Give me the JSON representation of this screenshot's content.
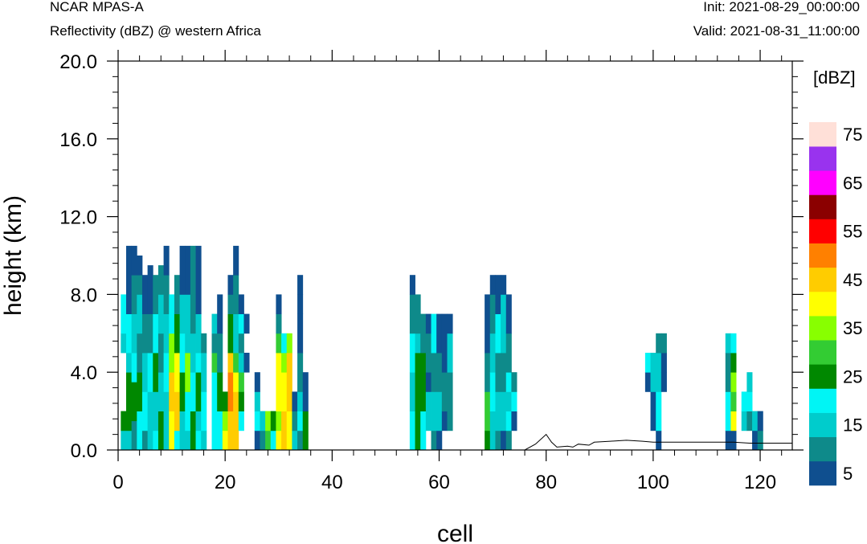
{
  "header": {
    "model": "NCAR MPAS-A",
    "field": "Reflectivity (dBZ) @ western Africa",
    "init": "Init: 2021-08-29_00:00:00",
    "valid": "Valid: 2021-08-31_11:00:00"
  },
  "chart_data": {
    "type": "heatmap",
    "xlabel": "cell",
    "ylabel": "height (km)",
    "xlim": [
      0,
      126
    ],
    "ylim": [
      0,
      20
    ],
    "x_ticks": [
      0,
      20,
      40,
      60,
      80,
      100,
      120
    ],
    "x_tick_labels": [
      "0",
      "20",
      "40",
      "60",
      "80",
      "100",
      "120"
    ],
    "y_ticks": [
      0,
      4,
      8,
      12,
      16,
      20
    ],
    "y_tick_labels": [
      "0.0",
      "4.0",
      "8.0",
      "12.0",
      "16.0",
      "20.0"
    ],
    "colorbar": {
      "unit_label": "[dBZ]",
      "levels": [
        5,
        10,
        15,
        20,
        25,
        30,
        35,
        40,
        45,
        50,
        55,
        60,
        65,
        70,
        75
      ],
      "colors": [
        "#0f4f8f",
        "#0e8a8a",
        "#00cccc",
        "#00f5f5",
        "#008800",
        "#33cc33",
        "#88ff00",
        "#ffff00",
        "#ffcc00",
        "#ff8000",
        "#ff0000",
        "#8b0000",
        "#ff00ff",
        "#9933ee",
        "#ffe0d8"
      ],
      "tick_labels": [
        "5",
        "15",
        "25",
        "35",
        "45",
        "55",
        "65",
        "75"
      ]
    },
    "terrain": [
      [
        0,
        0
      ],
      [
        76,
        0
      ],
      [
        78,
        0.3
      ],
      [
        80,
        0.8
      ],
      [
        81,
        0.4
      ],
      [
        82,
        0.15
      ],
      [
        84,
        0.2
      ],
      [
        85,
        0.15
      ],
      [
        86,
        0.3
      ],
      [
        88,
        0.25
      ],
      [
        89,
        0.4
      ],
      [
        92,
        0.45
      ],
      [
        95,
        0.5
      ],
      [
        98,
        0.45
      ],
      [
        100,
        0.4
      ],
      [
        105,
        0.4
      ],
      [
        110,
        0.4
      ],
      [
        115,
        0.4
      ],
      [
        118,
        0.35
      ],
      [
        120,
        0.35
      ],
      [
        126,
        0.35
      ]
    ],
    "cells": [
      [
        1,
        0,
        1,
        2
      ],
      [
        1,
        1,
        2,
        4
      ],
      [
        1,
        4,
        2,
        6
      ],
      [
        1,
        5,
        6,
        2
      ],
      [
        1,
        6,
        8,
        3
      ],
      [
        2,
        0,
        1,
        2
      ],
      [
        2,
        1,
        4,
        4
      ],
      [
        2,
        4,
        5,
        2
      ],
      [
        2,
        5,
        7,
        3
      ],
      [
        2,
        7,
        10.5,
        0
      ],
      [
        3,
        0,
        1.5,
        1
      ],
      [
        3,
        1.5,
        3.5,
        4
      ],
      [
        3,
        3.5,
        5,
        3
      ],
      [
        3,
        5,
        7,
        2
      ],
      [
        3,
        7,
        9,
        1
      ],
      [
        3,
        9,
        10.5,
        0
      ],
      [
        4,
        0,
        2,
        3
      ],
      [
        4,
        2,
        4,
        4
      ],
      [
        4,
        4,
        6,
        1
      ],
      [
        4,
        6,
        8,
        2
      ],
      [
        4,
        8,
        9,
        1
      ],
      [
        4,
        9,
        10,
        0
      ],
      [
        5,
        0,
        1,
        1
      ],
      [
        5,
        1,
        3,
        3
      ],
      [
        5,
        3,
        5,
        2
      ],
      [
        5,
        5,
        7,
        1
      ],
      [
        5,
        7,
        9,
        0
      ],
      [
        6,
        0,
        3,
        2
      ],
      [
        6,
        3,
        5,
        3
      ],
      [
        6,
        5,
        7,
        1
      ],
      [
        6,
        7,
        9.5,
        0
      ],
      [
        7,
        0,
        1,
        3
      ],
      [
        7,
        1,
        3,
        2
      ],
      [
        7,
        3,
        5,
        4
      ],
      [
        7,
        5,
        7,
        3
      ],
      [
        7,
        7,
        9,
        1
      ],
      [
        8,
        0,
        2,
        4
      ],
      [
        8,
        2,
        4,
        2
      ],
      [
        8,
        4,
        6,
        1
      ],
      [
        8,
        6,
        8,
        2
      ],
      [
        8,
        8,
        9.5,
        1
      ],
      [
        9,
        0,
        3,
        2
      ],
      [
        9,
        3,
        5,
        3
      ],
      [
        9,
        5,
        7,
        2
      ],
      [
        9,
        7,
        9,
        1
      ],
      [
        9,
        9,
        10.5,
        0
      ],
      [
        10,
        0,
        2,
        7
      ],
      [
        10,
        2,
        4,
        8
      ],
      [
        10,
        4,
        6,
        6
      ],
      [
        10,
        6,
        8,
        3
      ],
      [
        11,
        0,
        1,
        3
      ],
      [
        11,
        1,
        3,
        8
      ],
      [
        11,
        3,
        5,
        7
      ],
      [
        11,
        5,
        7,
        4
      ],
      [
        11,
        7,
        9,
        1
      ],
      [
        12,
        0,
        2,
        2
      ],
      [
        12,
        2,
        4,
        4
      ],
      [
        12,
        4,
        6,
        3
      ],
      [
        12,
        6,
        8,
        2
      ],
      [
        12,
        8,
        10.5,
        0
      ],
      [
        13,
        0,
        1,
        2
      ],
      [
        13,
        1,
        3,
        3
      ],
      [
        13,
        3,
        5,
        6
      ],
      [
        13,
        5,
        8,
        2
      ],
      [
        13,
        8,
        10.5,
        0
      ],
      [
        14,
        0,
        2,
        4
      ],
      [
        14,
        2,
        4,
        3
      ],
      [
        14,
        4,
        6,
        2
      ],
      [
        14,
        6,
        8,
        1
      ],
      [
        14,
        8,
        10.5,
        1
      ],
      [
        15,
        0,
        1,
        3
      ],
      [
        15,
        1,
        2,
        2
      ],
      [
        15,
        2,
        4,
        4
      ],
      [
        15,
        4,
        5,
        3
      ],
      [
        15,
        5,
        7,
        2
      ],
      [
        15,
        7,
        10.5,
        0
      ],
      [
        16,
        0,
        1,
        2
      ],
      [
        16,
        1,
        3,
        3
      ],
      [
        16,
        3,
        5,
        2
      ],
      [
        16,
        5,
        6,
        1
      ],
      [
        18,
        0,
        4,
        3
      ],
      [
        18,
        4,
        5,
        5
      ],
      [
        18,
        5,
        6,
        1
      ],
      [
        18,
        6,
        7,
        2
      ],
      [
        19,
        0,
        2,
        3
      ],
      [
        19,
        2,
        4,
        4
      ],
      [
        19,
        4,
        6,
        1
      ],
      [
        19,
        6,
        8,
        0
      ],
      [
        20,
        0,
        1,
        7
      ],
      [
        20,
        1,
        2,
        6
      ],
      [
        20,
        2,
        3,
        4
      ],
      [
        21,
        0,
        2,
        8
      ],
      [
        21,
        2,
        4,
        9
      ],
      [
        21,
        4,
        5,
        8
      ],
      [
        21,
        5,
        7,
        4
      ],
      [
        21,
        7,
        8,
        1
      ],
      [
        21,
        8,
        9,
        0
      ],
      [
        22,
        0,
        3,
        8
      ],
      [
        22,
        3,
        4,
        7
      ],
      [
        22,
        4,
        5,
        5
      ],
      [
        22,
        5,
        7,
        2
      ],
      [
        22,
        7,
        9,
        1
      ],
      [
        22,
        9,
        10.5,
        0
      ],
      [
        23,
        1,
        2,
        3
      ],
      [
        23,
        2,
        3,
        4
      ],
      [
        23,
        3,
        4,
        5
      ],
      [
        23,
        4,
        5,
        2
      ],
      [
        23,
        5,
        6,
        1
      ],
      [
        23,
        6,
        7,
        3
      ],
      [
        23,
        7,
        8,
        0
      ],
      [
        24,
        4,
        5,
        0
      ],
      [
        24,
        6,
        7,
        0
      ],
      [
        26,
        0,
        1,
        0
      ],
      [
        26,
        1,
        2,
        3
      ],
      [
        26,
        2,
        3,
        2
      ],
      [
        26,
        3,
        4,
        0
      ],
      [
        27,
        0,
        1,
        1
      ],
      [
        27,
        1,
        2,
        2
      ],
      [
        28,
        0,
        1,
        5
      ],
      [
        28,
        1,
        2,
        6
      ],
      [
        29,
        0,
        1,
        3
      ],
      [
        29,
        1,
        2,
        4
      ],
      [
        30,
        0,
        1,
        7
      ],
      [
        30,
        1,
        2,
        6
      ],
      [
        30,
        2,
        5,
        7
      ],
      [
        30,
        5,
        6,
        5
      ],
      [
        30,
        6,
        7,
        1
      ],
      [
        30,
        7,
        8,
        0
      ],
      [
        31,
        0,
        2,
        8
      ],
      [
        31,
        2,
        4,
        7
      ],
      [
        31,
        4,
        5,
        6
      ],
      [
        31,
        5,
        6,
        3
      ],
      [
        32,
        0,
        2,
        7
      ],
      [
        32,
        2,
        5,
        8
      ],
      [
        32,
        5,
        6,
        6
      ],
      [
        33,
        0,
        1,
        2
      ],
      [
        33,
        1,
        2,
        1
      ],
      [
        33,
        2,
        3,
        0
      ],
      [
        34,
        0,
        1,
        1
      ],
      [
        34,
        1,
        2,
        3
      ],
      [
        34,
        2,
        3,
        2
      ],
      [
        34,
        3,
        5,
        1
      ],
      [
        34,
        5,
        7,
        0
      ],
      [
        34,
        7,
        8,
        0
      ],
      [
        34,
        8,
        9,
        0
      ],
      [
        35,
        0,
        2,
        4
      ],
      [
        35,
        2,
        4,
        0
      ],
      [
        55,
        0,
        2,
        3
      ],
      [
        55,
        2,
        4,
        2
      ],
      [
        55,
        4,
        6,
        3
      ],
      [
        55,
        6,
        8,
        1
      ],
      [
        55,
        8,
        9,
        0
      ],
      [
        56,
        0,
        5,
        4
      ],
      [
        56,
        5,
        6,
        2
      ],
      [
        56,
        6,
        8,
        1
      ],
      [
        57,
        0,
        2,
        3
      ],
      [
        57,
        2,
        5,
        4
      ],
      [
        57,
        5,
        7,
        1
      ],
      [
        58,
        1,
        3,
        2
      ],
      [
        58,
        3,
        4,
        0
      ],
      [
        58,
        4,
        6,
        1
      ],
      [
        58,
        6,
        7,
        0
      ],
      [
        59,
        0,
        1,
        1
      ],
      [
        59,
        1,
        3,
        2
      ],
      [
        59,
        3,
        5,
        1
      ],
      [
        59,
        5,
        7,
        3
      ],
      [
        60,
        0,
        1,
        0
      ],
      [
        60,
        1,
        3,
        2
      ],
      [
        60,
        3,
        5,
        1
      ],
      [
        60,
        5,
        7,
        0
      ],
      [
        61,
        1,
        2,
        0
      ],
      [
        61,
        2,
        4,
        1
      ],
      [
        61,
        4,
        7,
        0
      ],
      [
        62,
        1,
        4,
        1
      ],
      [
        62,
        4,
        6,
        2
      ],
      [
        62,
        6,
        7,
        0
      ],
      [
        69,
        0,
        1,
        4
      ],
      [
        69,
        1,
        3,
        5
      ],
      [
        69,
        3,
        5,
        1
      ],
      [
        69,
        5,
        8,
        0
      ],
      [
        70,
        0,
        2,
        2
      ],
      [
        70,
        2,
        4,
        3
      ],
      [
        70,
        4,
        6,
        2
      ],
      [
        70,
        6,
        8,
        1
      ],
      [
        70,
        8,
        9,
        0
      ],
      [
        71,
        0,
        1,
        1
      ],
      [
        71,
        1,
        3,
        2
      ],
      [
        71,
        3,
        5,
        1
      ],
      [
        71,
        5,
        7,
        3
      ],
      [
        71,
        7,
        9,
        0
      ],
      [
        72,
        0,
        1,
        0
      ],
      [
        72,
        1,
        3,
        2
      ],
      [
        72,
        3,
        5,
        1
      ],
      [
        72,
        5,
        8,
        2
      ],
      [
        72,
        8,
        9,
        0
      ],
      [
        73,
        0,
        1,
        1
      ],
      [
        73,
        1,
        2,
        3
      ],
      [
        73,
        2,
        3,
        2
      ],
      [
        73,
        3,
        4,
        3
      ],
      [
        73,
        4,
        6,
        1
      ],
      [
        73,
        6,
        8,
        0
      ],
      [
        74,
        1,
        2,
        0
      ],
      [
        74,
        2,
        3,
        3
      ],
      [
        74,
        3,
        4,
        1
      ],
      [
        99,
        3,
        4,
        0
      ],
      [
        99,
        4,
        5,
        3
      ],
      [
        100,
        1,
        3,
        0
      ],
      [
        100,
        3,
        5,
        2
      ],
      [
        101,
        0,
        1,
        0
      ],
      [
        101,
        1,
        3,
        3
      ],
      [
        101,
        3,
        5,
        2
      ],
      [
        101,
        5,
        6,
        1
      ],
      [
        102,
        3,
        4,
        0
      ],
      [
        102,
        4,
        5,
        0
      ],
      [
        102,
        5,
        6,
        1
      ],
      [
        114,
        0,
        1,
        0
      ],
      [
        114,
        1,
        3,
        3
      ],
      [
        114,
        3,
        5,
        1
      ],
      [
        114,
        5,
        6,
        2
      ],
      [
        115,
        0,
        1,
        0
      ],
      [
        115,
        1,
        2,
        7
      ],
      [
        115,
        2,
        3,
        5
      ],
      [
        115,
        3,
        4,
        6
      ],
      [
        115,
        4,
        5,
        4
      ],
      [
        115,
        5,
        6,
        3
      ],
      [
        117,
        1,
        2,
        2
      ],
      [
        117,
        2,
        3,
        3
      ],
      [
        118,
        1,
        2,
        1
      ],
      [
        118,
        2,
        3,
        3
      ],
      [
        118,
        3,
        4,
        2
      ],
      [
        119,
        0,
        1,
        0
      ],
      [
        119,
        1,
        2,
        2
      ],
      [
        120,
        0,
        1,
        1
      ],
      [
        120,
        1,
        2,
        0
      ]
    ]
  }
}
